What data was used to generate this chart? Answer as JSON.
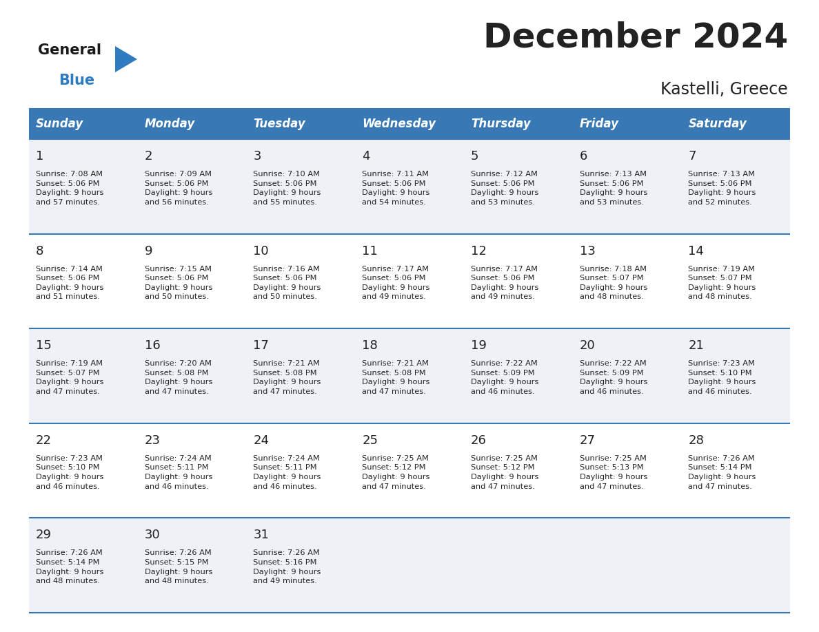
{
  "title": "December 2024",
  "subtitle": "Kastelli, Greece",
  "header_color": "#3878b4",
  "header_text_color": "#ffffff",
  "days_of_week": [
    "Sunday",
    "Monday",
    "Tuesday",
    "Wednesday",
    "Thursday",
    "Friday",
    "Saturday"
  ],
  "bg_color": "#ffffff",
  "cell_bg_even": "#eef2f7",
  "cell_bg_odd": "#ffffff",
  "divider_color": "#3878b4",
  "text_color": "#222222",
  "logo_general_color": "#1a1a1a",
  "logo_blue_color": "#2e7bbf",
  "weeks": [
    [
      {
        "day": 1,
        "sunrise": "7:08 AM",
        "sunset": "5:06 PM",
        "daylight": "9 hours\nand 57 minutes."
      },
      {
        "day": 2,
        "sunrise": "7:09 AM",
        "sunset": "5:06 PM",
        "daylight": "9 hours\nand 56 minutes."
      },
      {
        "day": 3,
        "sunrise": "7:10 AM",
        "sunset": "5:06 PM",
        "daylight": "9 hours\nand 55 minutes."
      },
      {
        "day": 4,
        "sunrise": "7:11 AM",
        "sunset": "5:06 PM",
        "daylight": "9 hours\nand 54 minutes."
      },
      {
        "day": 5,
        "sunrise": "7:12 AM",
        "sunset": "5:06 PM",
        "daylight": "9 hours\nand 53 minutes."
      },
      {
        "day": 6,
        "sunrise": "7:13 AM",
        "sunset": "5:06 PM",
        "daylight": "9 hours\nand 53 minutes."
      },
      {
        "day": 7,
        "sunrise": "7:13 AM",
        "sunset": "5:06 PM",
        "daylight": "9 hours\nand 52 minutes."
      }
    ],
    [
      {
        "day": 8,
        "sunrise": "7:14 AM",
        "sunset": "5:06 PM",
        "daylight": "9 hours\nand 51 minutes."
      },
      {
        "day": 9,
        "sunrise": "7:15 AM",
        "sunset": "5:06 PM",
        "daylight": "9 hours\nand 50 minutes."
      },
      {
        "day": 10,
        "sunrise": "7:16 AM",
        "sunset": "5:06 PM",
        "daylight": "9 hours\nand 50 minutes."
      },
      {
        "day": 11,
        "sunrise": "7:17 AM",
        "sunset": "5:06 PM",
        "daylight": "9 hours\nand 49 minutes."
      },
      {
        "day": 12,
        "sunrise": "7:17 AM",
        "sunset": "5:06 PM",
        "daylight": "9 hours\nand 49 minutes."
      },
      {
        "day": 13,
        "sunrise": "7:18 AM",
        "sunset": "5:07 PM",
        "daylight": "9 hours\nand 48 minutes."
      },
      {
        "day": 14,
        "sunrise": "7:19 AM",
        "sunset": "5:07 PM",
        "daylight": "9 hours\nand 48 minutes."
      }
    ],
    [
      {
        "day": 15,
        "sunrise": "7:19 AM",
        "sunset": "5:07 PM",
        "daylight": "9 hours\nand 47 minutes."
      },
      {
        "day": 16,
        "sunrise": "7:20 AM",
        "sunset": "5:08 PM",
        "daylight": "9 hours\nand 47 minutes."
      },
      {
        "day": 17,
        "sunrise": "7:21 AM",
        "sunset": "5:08 PM",
        "daylight": "9 hours\nand 47 minutes."
      },
      {
        "day": 18,
        "sunrise": "7:21 AM",
        "sunset": "5:08 PM",
        "daylight": "9 hours\nand 47 minutes."
      },
      {
        "day": 19,
        "sunrise": "7:22 AM",
        "sunset": "5:09 PM",
        "daylight": "9 hours\nand 46 minutes."
      },
      {
        "day": 20,
        "sunrise": "7:22 AM",
        "sunset": "5:09 PM",
        "daylight": "9 hours\nand 46 minutes."
      },
      {
        "day": 21,
        "sunrise": "7:23 AM",
        "sunset": "5:10 PM",
        "daylight": "9 hours\nand 46 minutes."
      }
    ],
    [
      {
        "day": 22,
        "sunrise": "7:23 AM",
        "sunset": "5:10 PM",
        "daylight": "9 hours\nand 46 minutes."
      },
      {
        "day": 23,
        "sunrise": "7:24 AM",
        "sunset": "5:11 PM",
        "daylight": "9 hours\nand 46 minutes."
      },
      {
        "day": 24,
        "sunrise": "7:24 AM",
        "sunset": "5:11 PM",
        "daylight": "9 hours\nand 46 minutes."
      },
      {
        "day": 25,
        "sunrise": "7:25 AM",
        "sunset": "5:12 PM",
        "daylight": "9 hours\nand 47 minutes."
      },
      {
        "day": 26,
        "sunrise": "7:25 AM",
        "sunset": "5:12 PM",
        "daylight": "9 hours\nand 47 minutes."
      },
      {
        "day": 27,
        "sunrise": "7:25 AM",
        "sunset": "5:13 PM",
        "daylight": "9 hours\nand 47 minutes."
      },
      {
        "day": 28,
        "sunrise": "7:26 AM",
        "sunset": "5:14 PM",
        "daylight": "9 hours\nand 47 minutes."
      }
    ],
    [
      {
        "day": 29,
        "sunrise": "7:26 AM",
        "sunset": "5:14 PM",
        "daylight": "9 hours\nand 48 minutes."
      },
      {
        "day": 30,
        "sunrise": "7:26 AM",
        "sunset": "5:15 PM",
        "daylight": "9 hours\nand 48 minutes."
      },
      {
        "day": 31,
        "sunrise": "7:26 AM",
        "sunset": "5:16 PM",
        "daylight": "9 hours\nand 49 minutes."
      },
      null,
      null,
      null,
      null
    ]
  ]
}
